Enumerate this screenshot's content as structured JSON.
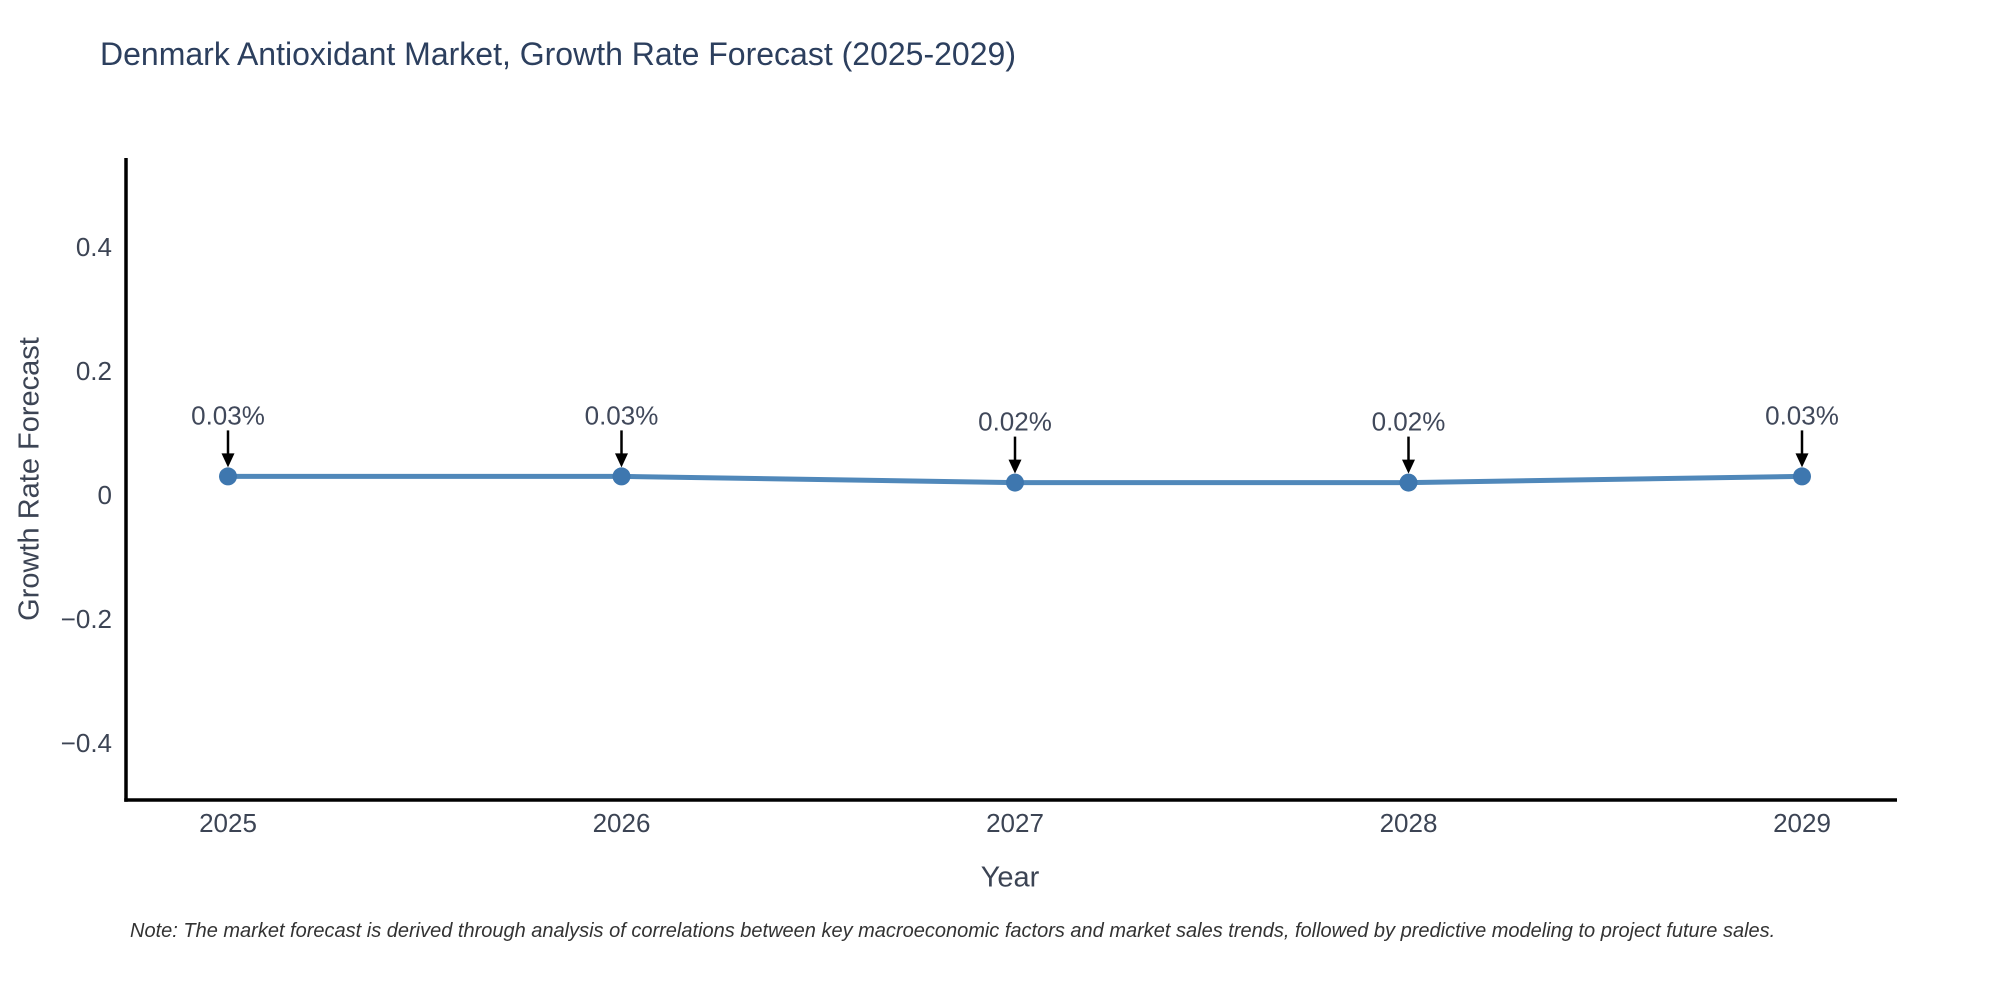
{
  "page": {
    "background": "#ffffff"
  },
  "header": {
    "title": "Denmark Antioxidant Market, Growth Rate Forecast (2025-2029)"
  },
  "footer": {
    "note": "Note: The market forecast is derived through analysis of correlations between key macroeconomic factors and market sales trends, followed by predictive modeling to project future sales."
  },
  "chart_data": {
    "type": "line",
    "title": "Denmark Antioxidant Market, Growth Rate Forecast (2025-2029)",
    "x": [
      2025,
      2026,
      2027,
      2028,
      2029
    ],
    "series": [
      {
        "name": "Growth Rate Forecast",
        "values": [
          0.03,
          0.03,
          0.02,
          0.02,
          0.03
        ]
      }
    ],
    "point_labels": [
      "0.03%",
      "0.03%",
      "0.02%",
      "0.02%",
      "0.03%"
    ],
    "xlabel": "Year",
    "ylabel": "Growth Rate Forecast",
    "xtick_labels": [
      "2025",
      "2026",
      "2027",
      "2028",
      "2029"
    ],
    "yticks": [
      0.4,
      0.2,
      0,
      -0.2,
      -0.4
    ],
    "ytick_labels": [
      "0.4",
      "0.2",
      "0",
      "−0.2",
      "−0.4"
    ],
    "ylim": [
      -0.497,
      0.544
    ],
    "grid": false,
    "legend_position": "none",
    "colors": {
      "line": "#5088ba",
      "marker": "#3e77af",
      "axis_spine": "#000000",
      "tick_label": "#3c4454",
      "title": "#2c3f5e",
      "annotation_text": "#40485a",
      "annotation_arrow": "#000000",
      "note_text": "#333333"
    }
  }
}
